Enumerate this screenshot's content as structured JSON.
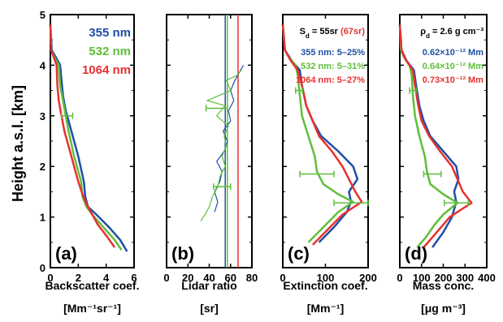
{
  "chart_data": [
    {
      "panel": "a",
      "type": "line",
      "panel_label": "(a)",
      "xlabel": "Backscatter coef.",
      "xunit": "[Mm⁻¹sr⁻¹]",
      "ylabel": "Height a.s.l. [km]",
      "xlim": [
        0,
        6
      ],
      "ylim": [
        0,
        5
      ],
      "xticks": [
        0,
        2,
        4,
        6
      ],
      "yticks": [
        0,
        1,
        2,
        3,
        4,
        5
      ],
      "legend": [
        "355 nm",
        "532 nm",
        "1064 nm"
      ],
      "series": [
        {
          "name": "355 nm",
          "color": "#1f4fa8",
          "points": [
            [
              5.5,
              0.32
            ],
            [
              5.0,
              0.55
            ],
            [
              4.2,
              0.8
            ],
            [
              3.3,
              1.05
            ],
            [
              2.7,
              1.2
            ],
            [
              2.5,
              1.4
            ],
            [
              2.4,
              1.7
            ],
            [
              2.0,
              2.2
            ],
            [
              1.5,
              2.7
            ],
            [
              1.1,
              3.1
            ],
            [
              0.9,
              3.4
            ],
            [
              0.8,
              3.7
            ],
            [
              0.7,
              4.0
            ],
            [
              0.4,
              4.15
            ],
            [
              0.1,
              4.3
            ],
            [
              0.0,
              4.8
            ]
          ]
        },
        {
          "name": "532 nm",
          "color": "#5fbf3a",
          "points": [
            [
              5.1,
              0.35
            ],
            [
              4.6,
              0.55
            ],
            [
              3.8,
              0.8
            ],
            [
              3.0,
              1.05
            ],
            [
              2.6,
              1.2
            ],
            [
              2.3,
              1.4
            ],
            [
              2.2,
              1.7
            ],
            [
              1.7,
              2.2
            ],
            [
              1.3,
              2.7
            ],
            [
              1.1,
              3.0
            ],
            [
              0.9,
              3.3
            ],
            [
              0.7,
              3.6
            ],
            [
              0.6,
              4.0
            ],
            [
              0.3,
              4.15
            ],
            [
              0.05,
              4.3
            ],
            [
              0.0,
              4.8
            ]
          ]
        },
        {
          "name": "1064 nm",
          "color": "#e8302e",
          "points": [
            [
              4.6,
              0.4
            ],
            [
              4.1,
              0.6
            ],
            [
              3.4,
              0.85
            ],
            [
              2.9,
              1.1
            ],
            [
              2.6,
              1.25
            ],
            [
              2.3,
              1.45
            ],
            [
              2.0,
              1.7
            ],
            [
              1.5,
              2.2
            ],
            [
              1.0,
              2.7
            ],
            [
              0.8,
              3.0
            ],
            [
              0.6,
              3.3
            ],
            [
              0.5,
              3.6
            ],
            [
              0.45,
              4.0
            ],
            [
              0.25,
              4.15
            ],
            [
              0.05,
              4.3
            ],
            [
              0.0,
              4.8
            ]
          ]
        }
      ],
      "errorbars": [
        {
          "x": 1.2,
          "y": 3.0,
          "xerr": 0.4,
          "color": "#5fbf3a"
        }
      ]
    },
    {
      "panel": "b",
      "type": "line",
      "panel_label": "(b)",
      "xlabel": "Lidar ratio",
      "xunit": "[sr]",
      "xlim": [
        0,
        80
      ],
      "ylim": [
        0,
        5
      ],
      "xticks": [
        0,
        20,
        40,
        60,
        80
      ],
      "series": [
        {
          "name": "355 nm",
          "color": "#1f4fa8",
          "points": [
            [
              45,
              1.1
            ],
            [
              48,
              1.3
            ],
            [
              45,
              1.5
            ],
            [
              50,
              1.7
            ],
            [
              52,
              1.9
            ],
            [
              47,
              2.1
            ],
            [
              54,
              2.3
            ],
            [
              57,
              2.5
            ],
            [
              53,
              2.7
            ],
            [
              60,
              2.9
            ],
            [
              58,
              3.1
            ],
            [
              63,
              3.3
            ],
            [
              60,
              3.5
            ],
            [
              64,
              3.7
            ],
            [
              68,
              3.85
            ],
            [
              72,
              4.0
            ]
          ]
        },
        {
          "name": "532 nm",
          "color": "#5fbf3a",
          "points": [
            [
              32,
              0.92
            ],
            [
              36,
              1.05
            ],
            [
              40,
              1.2
            ],
            [
              43,
              1.4
            ],
            [
              48,
              1.6
            ],
            [
              50,
              1.8
            ],
            [
              55,
              2.0
            ],
            [
              52,
              2.2
            ],
            [
              56,
              2.4
            ],
            [
              54,
              2.6
            ],
            [
              58,
              2.8
            ],
            [
              47,
              3.0
            ],
            [
              55,
              3.2
            ],
            [
              38,
              3.3
            ],
            [
              60,
              3.5
            ],
            [
              56,
              3.7
            ],
            [
              66,
              3.8
            ],
            [
              70,
              3.9
            ]
          ]
        },
        {
          "name": "1064 nm",
          "color": "#e8302e",
          "points": []
        }
      ],
      "reference_lines": [
        {
          "x": 55,
          "color": "#1f4fa8"
        },
        {
          "x": 57,
          "color": "#5fbf3a"
        },
        {
          "x": 67,
          "color": "#e8302e"
        }
      ],
      "errorbars": [
        {
          "x": 52,
          "y": 1.6,
          "xerr": 8,
          "color": "#5fbf3a"
        },
        {
          "x": 47,
          "y": 3.15,
          "xerr": 10,
          "color": "#5fbf3a"
        }
      ]
    },
    {
      "panel": "c",
      "type": "line",
      "panel_label": "(c)",
      "xlabel": "Extinction coef.",
      "xunit": "[Mm⁻¹]",
      "xlim": [
        0,
        200
      ],
      "ylim": [
        0,
        5
      ],
      "xticks": [
        0,
        100,
        200
      ],
      "annotations": {
        "sd_prefix": "S",
        "sd_sub": "d",
        "sd_value": " = 55sr ",
        "sd_red": "(67sr)",
        "line1": "355 nm: 5–25%",
        "line2": "532 nm: 5–31%",
        "line3": "1064 nm: 5–27%"
      },
      "series": [
        {
          "name": "355 nm",
          "color": "#1f4fa8",
          "points": [
            [
              85,
              0.5
            ],
            [
              120,
              0.8
            ],
            [
              150,
              1.1
            ],
            [
              160,
              1.3
            ],
            [
              155,
              1.5
            ],
            [
              175,
              1.75
            ],
            [
              165,
              2.0
            ],
            [
              130,
              2.3
            ],
            [
              90,
              2.6
            ],
            [
              70,
              2.9
            ],
            [
              55,
              3.2
            ],
            [
              45,
              3.6
            ],
            [
              40,
              3.9
            ],
            [
              20,
              4.1
            ],
            [
              5,
              4.3
            ],
            [
              0,
              4.8
            ]
          ]
        },
        {
          "name": "532 nm",
          "color": "#5fbf3a",
          "points": [
            [
              60,
              0.5
            ],
            [
              95,
              0.8
            ],
            [
              130,
              1.1
            ],
            [
              165,
              1.3
            ],
            [
              130,
              1.45
            ],
            [
              95,
              1.65
            ],
            [
              80,
              1.9
            ],
            [
              75,
              2.2
            ],
            [
              60,
              2.6
            ],
            [
              45,
              3.0
            ],
            [
              40,
              3.4
            ],
            [
              35,
              3.8
            ],
            [
              30,
              4.0
            ],
            [
              15,
              4.15
            ],
            [
              5,
              4.3
            ],
            [
              0,
              4.8
            ]
          ]
        },
        {
          "name": "1064 nm",
          "color": "#e8302e",
          "points": [
            [
              70,
              0.45
            ],
            [
              105,
              0.75
            ],
            [
              140,
              1.05
            ],
            [
              185,
              1.3
            ],
            [
              170,
              1.5
            ],
            [
              155,
              1.75
            ],
            [
              140,
              2.0
            ],
            [
              115,
              2.3
            ],
            [
              85,
              2.6
            ],
            [
              70,
              2.9
            ],
            [
              55,
              3.2
            ],
            [
              45,
              3.6
            ],
            [
              35,
              3.9
            ],
            [
              18,
              4.1
            ],
            [
              5,
              4.3
            ],
            [
              0,
              4.8
            ]
          ]
        }
      ],
      "errorbars": [
        {
          "x": 80,
          "y": 1.85,
          "xerr": 40,
          "color": "#5fbf3a"
        },
        {
          "x": 160,
          "y": 1.28,
          "xerr": 40,
          "color": "#5fbf3a"
        },
        {
          "x": 38,
          "y": 3.5,
          "xerr": 8,
          "color": "#5fbf3a"
        }
      ]
    },
    {
      "panel": "d",
      "type": "line",
      "panel_label": "(d)",
      "xlabel": "Mass conc.",
      "xunit": "[μg m⁻³]",
      "xlim": [
        0,
        400
      ],
      "ylim": [
        0,
        5
      ],
      "xticks": [
        0,
        100,
        200,
        300,
        400
      ],
      "annotations": {
        "rho_prefix": "ρ",
        "rho_sub": "d",
        "rho_value": " = 2.6 g cm⁻³",
        "line1": "0.62×10⁻¹² Mm",
        "line2": "0.64×10⁻¹² Mm",
        "line3": "0.73×10⁻¹² Mm"
      },
      "series": [
        {
          "name": "355 nm",
          "color": "#1f4fa8",
          "points": [
            [
              150,
              0.4
            ],
            [
              200,
              0.7
            ],
            [
              240,
              1.0
            ],
            [
              260,
              1.3
            ],
            [
              250,
              1.5
            ],
            [
              270,
              1.75
            ],
            [
              260,
              2.0
            ],
            [
              200,
              2.3
            ],
            [
              140,
              2.6
            ],
            [
              110,
              2.9
            ],
            [
              90,
              3.2
            ],
            [
              75,
              3.6
            ],
            [
              65,
              3.9
            ],
            [
              30,
              4.1
            ],
            [
              8,
              4.3
            ],
            [
              0,
              4.8
            ]
          ]
        },
        {
          "name": "532 nm",
          "color": "#5fbf3a",
          "points": [
            [
              80,
              0.4
            ],
            [
              120,
              0.6
            ],
            [
              160,
              0.85
            ],
            [
              200,
              1.05
            ],
            [
              265,
              1.28
            ],
            [
              200,
              1.45
            ],
            [
              140,
              1.65
            ],
            [
              125,
              1.9
            ],
            [
              115,
              2.2
            ],
            [
              90,
              2.6
            ],
            [
              70,
              3.0
            ],
            [
              60,
              3.4
            ],
            [
              55,
              3.8
            ],
            [
              45,
              4.0
            ],
            [
              20,
              4.15
            ],
            [
              5,
              4.3
            ],
            [
              0,
              4.8
            ]
          ]
        },
        {
          "name": "1064 nm",
          "color": "#e8302e",
          "points": [
            [
              110,
              0.4
            ],
            [
              170,
              0.7
            ],
            [
              230,
              1.0
            ],
            [
              330,
              1.28
            ],
            [
              290,
              1.5
            ],
            [
              265,
              1.75
            ],
            [
              240,
              2.0
            ],
            [
              185,
              2.3
            ],
            [
              135,
              2.6
            ],
            [
              100,
              2.9
            ],
            [
              85,
              3.2
            ],
            [
              70,
              3.6
            ],
            [
              60,
              3.9
            ],
            [
              28,
              4.1
            ],
            [
              8,
              4.3
            ],
            [
              0,
              4.8
            ]
          ]
        }
      ],
      "errorbars": [
        {
          "x": 150,
          "y": 1.85,
          "xerr": 40,
          "color": "#5fbf3a"
        },
        {
          "x": 260,
          "y": 1.28,
          "xerr": 55,
          "color": "#5fbf3a"
        },
        {
          "x": 60,
          "y": 3.5,
          "xerr": 15,
          "color": "#5fbf3a"
        }
      ]
    }
  ]
}
